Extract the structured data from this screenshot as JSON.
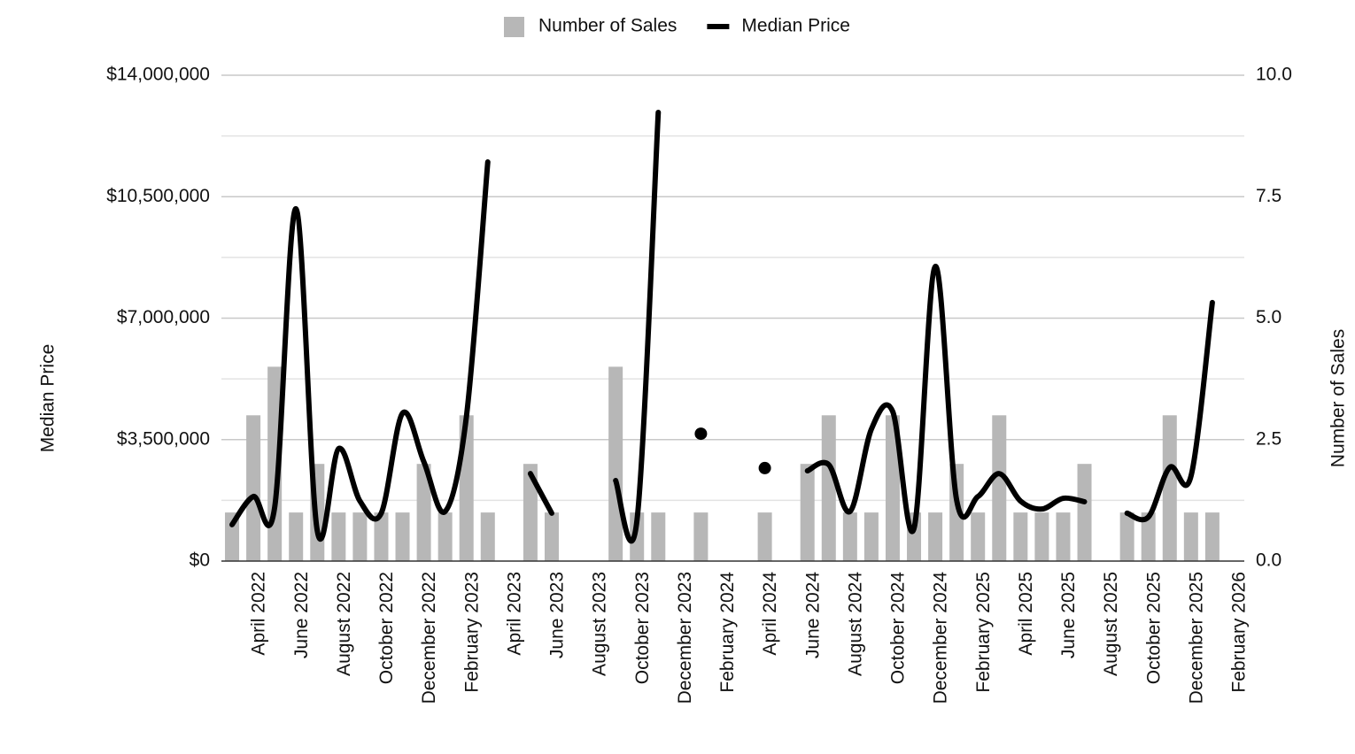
{
  "chart_data": {
    "type": "combo",
    "categories": [
      null,
      "April 2022",
      null,
      "June 2022",
      null,
      "August 2022",
      null,
      "October 2022",
      null,
      "December 2022",
      null,
      "February 2023",
      null,
      "April 2023",
      null,
      "June 2023",
      null,
      "August 2023",
      null,
      "October 2023",
      null,
      "December 2023",
      null,
      "February 2024",
      null,
      "April 2024",
      null,
      "June 2024",
      null,
      "August 2024",
      null,
      "October 2024",
      null,
      "December 2024",
      null,
      "February 2025",
      null,
      "April 2025",
      null,
      "June 2025",
      null,
      "August 2025",
      null,
      "October 2025",
      null,
      "December 2025",
      null,
      "February 2026"
    ],
    "series": [
      {
        "name": "Number of Sales",
        "type": "bar",
        "axis": "y2",
        "color": "#b7b7b7",
        "values": [
          1,
          3,
          4,
          1,
          2,
          1,
          1,
          1,
          1,
          2,
          1,
          3,
          1,
          0,
          2,
          1,
          0,
          0,
          4,
          1,
          1,
          0,
          1,
          0,
          0,
          1,
          0,
          2,
          3,
          1,
          1,
          3,
          1,
          1,
          2,
          1,
          3,
          1,
          1,
          1,
          2,
          0,
          1,
          1,
          3,
          1,
          1,
          0
        ]
      },
      {
        "name": "Median Price",
        "type": "line",
        "axis": "y",
        "color": "#000000",
        "values": [
          1050000,
          1860000,
          1550000,
          10150000,
          870000,
          3240000,
          1730000,
          1380000,
          4260000,
          2860000,
          1430000,
          4180000,
          11500000,
          null,
          2520000,
          1380000,
          null,
          null,
          2320000,
          1170000,
          12930000,
          null,
          3670000,
          null,
          null,
          2680000,
          null,
          2600000,
          2780000,
          1430000,
          3800000,
          4310000,
          940000,
          8490000,
          1760000,
          1860000,
          2520000,
          1730000,
          1500000,
          1810000,
          1710000,
          null,
          1380000,
          1270000,
          2700000,
          2450000,
          7450000,
          null
        ]
      }
    ],
    "y_label": "Median Price",
    "y2_label": "Number of Sales",
    "ylim": [
      0,
      14000000
    ],
    "yticks": [
      {
        "value": 0,
        "label": "$0"
      },
      {
        "value": 3500000,
        "label": "$3,500,000"
      },
      {
        "value": 7000000,
        "label": "$7,000,000"
      },
      {
        "value": 10500000,
        "label": "$10,500,000"
      },
      {
        "value": 14000000,
        "label": "$14,000,000"
      }
    ],
    "minor_yticks": [
      1750000,
      5250000,
      8750000,
      12250000
    ],
    "y2lim": [
      0,
      10
    ],
    "y2ticks": [
      {
        "value": 0,
        "label": "0.0"
      },
      2.5,
      {
        "value": 5,
        "label": "5.0"
      },
      7.5,
      {
        "value": 10,
        "label": "10.0"
      }
    ],
    "grid": true,
    "legend": "top"
  }
}
